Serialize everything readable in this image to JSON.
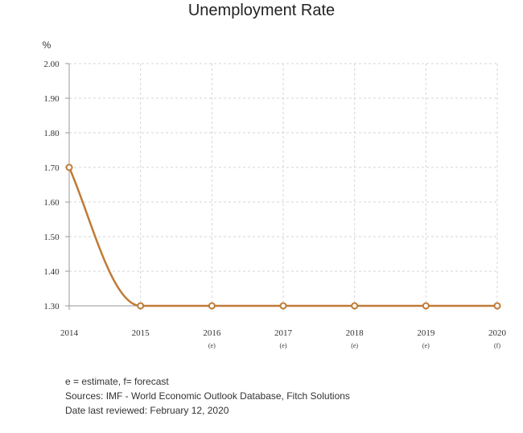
{
  "chart_data": {
    "type": "line",
    "title": "Unemployment Rate",
    "ylabel": "%",
    "xlabel": "",
    "categories": [
      "2014",
      "2015",
      "2016",
      "2017",
      "2018",
      "2019",
      "2020"
    ],
    "category_notes": [
      "",
      "",
      "(e)",
      "(e)",
      "(e)",
      "(e)",
      "(f)"
    ],
    "series": [
      {
        "values": [
          1.7,
          1.3,
          1.3,
          1.3,
          1.3,
          1.3,
          1.3
        ]
      }
    ],
    "ylim": [
      1.3,
      2.0
    ],
    "yticks": [
      "2.00",
      "1.90",
      "1.80",
      "1.70",
      "1.60",
      "1.50",
      "1.40",
      "1.30"
    ],
    "grid": true,
    "line_color": "#c07a35"
  },
  "notes": {
    "legend_note": "e = estimate, f= forecast",
    "sources": "Sources: IMF - World Economic Outlook Database, Fitch Solutions",
    "reviewed": "Date last reviewed: February 12, 2020"
  }
}
